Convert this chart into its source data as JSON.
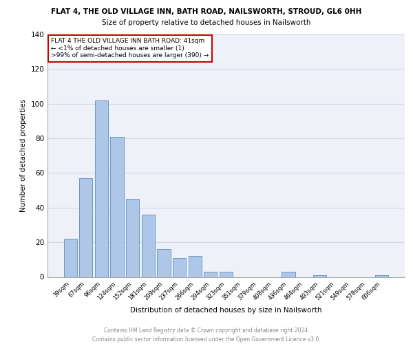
{
  "title": "FLAT 4, THE OLD VILLAGE INN, BATH ROAD, NAILSWORTH, STROUD, GL6 0HH",
  "subtitle": "Size of property relative to detached houses in Nailsworth",
  "xlabel": "Distribution of detached houses by size in Nailsworth",
  "ylabel": "Number of detached properties",
  "categories": [
    "39sqm",
    "67sqm",
    "96sqm",
    "124sqm",
    "152sqm",
    "181sqm",
    "209sqm",
    "237sqm",
    "266sqm",
    "294sqm",
    "323sqm",
    "351sqm",
    "379sqm",
    "408sqm",
    "436sqm",
    "464sqm",
    "493sqm",
    "521sqm",
    "549sqm",
    "578sqm",
    "606sqm"
  ],
  "values": [
    22,
    57,
    102,
    81,
    45,
    36,
    16,
    11,
    12,
    3,
    3,
    0,
    0,
    0,
    3,
    0,
    1,
    0,
    0,
    0,
    1
  ],
  "bar_color": "#aec6e8",
  "bar_edge_color": "#5a8fc2",
  "annotation_box_text": "FLAT 4 THE OLD VILLAGE INN BATH ROAD: 41sqm\n← <1% of detached houses are smaller (1)\n>99% of semi-detached houses are larger (390) →",
  "annotation_box_color": "#ffffff",
  "annotation_box_edge_color": "#cc0000",
  "ylim": [
    0,
    140
  ],
  "yticks": [
    0,
    20,
    40,
    60,
    80,
    100,
    120,
    140
  ],
  "grid_color": "#d0d8e8",
  "background_color": "#eef2f8",
  "footer_line1": "Contains HM Land Registry data © Crown copyright and database right 2024.",
  "footer_line2": "Contains public sector information licensed under the Open Government Licence v3.0."
}
